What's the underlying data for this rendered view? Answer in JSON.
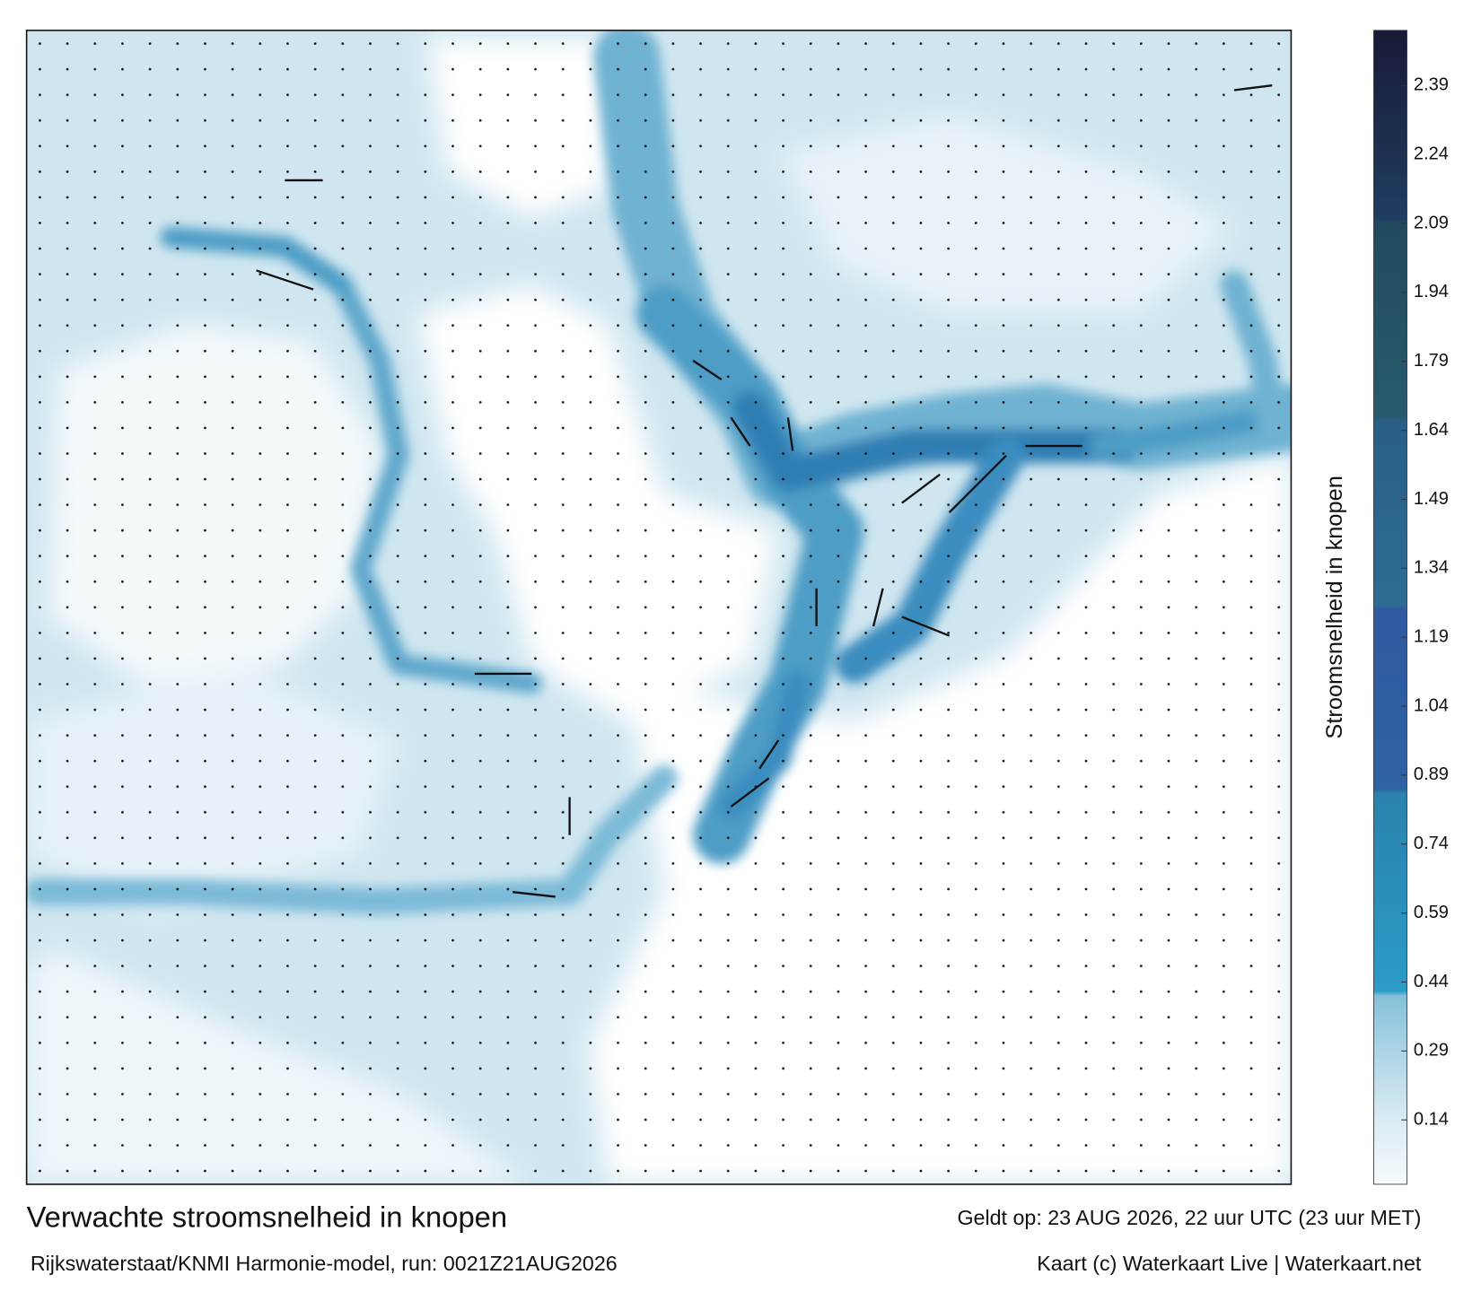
{
  "map": {
    "title": "Verwachte stroomsnelheid in knopen",
    "valid_time": "Geldt op: 23 AUG 2026, 22 uur UTC (23 uur MET)",
    "model": "Rijkswaterstaat/KNMI Harmonie-model, run: 0021Z21AUG2026",
    "credit": "Kaart (c) Waterkaart Live | Waterkaart.net",
    "colorbar": {
      "label": "Stroomsnelheid in knopen",
      "lim": [
        0,
        2.51
      ],
      "ticks": [
        0.14,
        0.29,
        0.44,
        0.59,
        0.74,
        0.89,
        1.04,
        1.19,
        1.34,
        1.49,
        1.64,
        1.79,
        1.94,
        2.09,
        2.24,
        2.39
      ],
      "stops": [
        {
          "value": 0,
          "color": "#f6fafc"
        },
        {
          "value": 0.14,
          "color": "#d9ebf3"
        },
        {
          "value": 0.29,
          "color": "#acd4e5"
        },
        {
          "value": 0.41,
          "color": "#84c1da"
        },
        {
          "value": 0.42,
          "color": "#2a9cc6"
        },
        {
          "value": 0.85,
          "color": "#2a82ae"
        },
        {
          "value": 0.86,
          "color": "#2e62a2"
        },
        {
          "value": 1.25,
          "color": "#3059a0"
        },
        {
          "value": 1.26,
          "color": "#2d6c94"
        },
        {
          "value": 1.66,
          "color": "#295f86"
        },
        {
          "value": 1.67,
          "color": "#275a6c"
        },
        {
          "value": 2.09,
          "color": "#224a5e"
        },
        {
          "value": 2.1,
          "color": "#1f3d60"
        },
        {
          "value": 2.51,
          "color": "#191a37"
        }
      ]
    }
  }
}
